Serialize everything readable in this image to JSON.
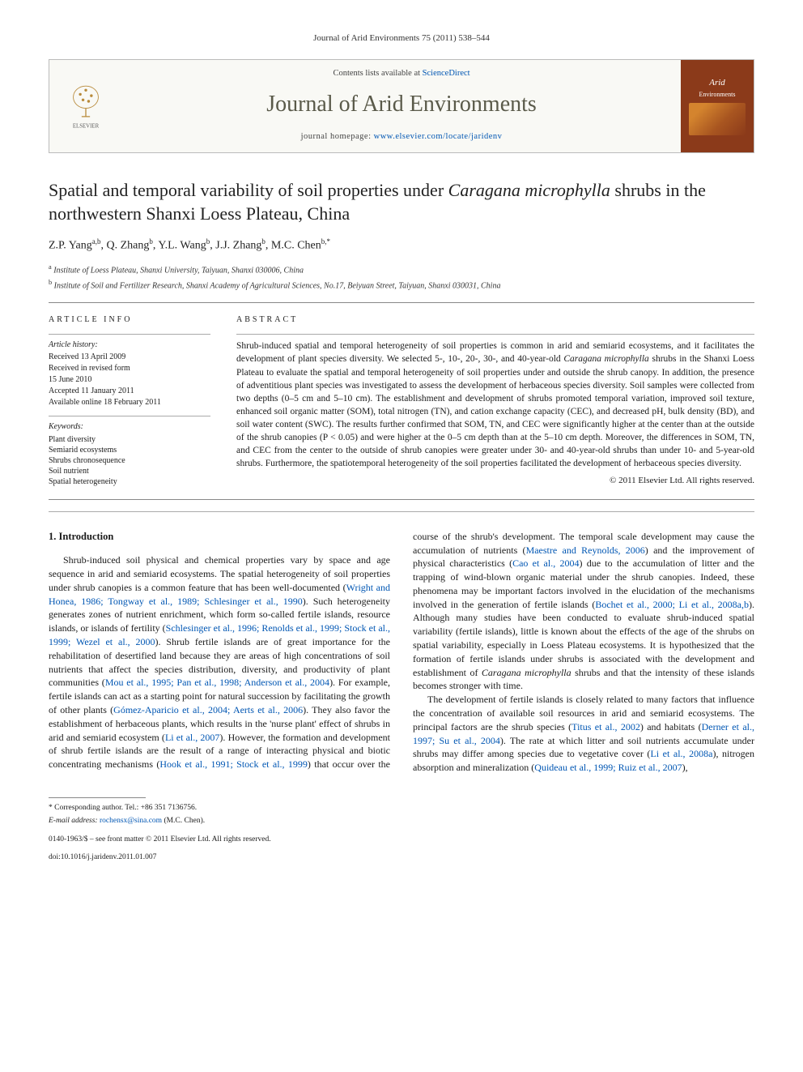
{
  "citation": "Journal of Arid Environments 75 (2011) 538–544",
  "masthead": {
    "contents_prefix": "Contents lists available at ",
    "contents_link": "ScienceDirect",
    "journal_name": "Journal of Arid Environments",
    "homepage_prefix": "journal homepage: ",
    "homepage_url": "www.elsevier.com/locate/jaridenv",
    "publisher": "ELSEVIER",
    "cover_title": "Arid",
    "cover_sub": "Environments"
  },
  "article": {
    "title_pre": "Spatial and temporal variability of soil properties under ",
    "title_species": "Caragana microphylla",
    "title_post": " shrubs in the northwestern Shanxi Loess Plateau, China",
    "authors_html": "Z.P. Yang",
    "authors": [
      {
        "name": "Z.P. Yang",
        "sup": "a,b"
      },
      {
        "name": "Q. Zhang",
        "sup": "b"
      },
      {
        "name": "Y.L. Wang",
        "sup": "b"
      },
      {
        "name": "J.J. Zhang",
        "sup": "b"
      },
      {
        "name": "M.C. Chen",
        "sup": "b,*"
      }
    ],
    "affiliations": [
      {
        "sup": "a",
        "text": "Institute of Loess Plateau, Shanxi University, Taiyuan, Shanxi 030006, China"
      },
      {
        "sup": "b",
        "text": "Institute of Soil and Fertilizer Research, Shanxi Academy of Agricultural Sciences, No.17, Beiyuan Street, Taiyuan, Shanxi 030031, China"
      }
    ]
  },
  "info": {
    "heading": "ARTICLE INFO",
    "history_label": "Article history:",
    "history": [
      "Received 13 April 2009",
      "Received in revised form",
      "15 June 2010",
      "Accepted 11 January 2011",
      "Available online 18 February 2011"
    ],
    "keywords_label": "Keywords:",
    "keywords": [
      "Plant diversity",
      "Semiarid ecosystems",
      "Shrubs chronosequence",
      "Soil nutrient",
      "Spatial heterogeneity"
    ]
  },
  "abstract": {
    "heading": "ABSTRACT",
    "text_pre": "Shrub-induced spatial and temporal heterogeneity of soil properties is common in arid and semiarid ecosystems, and it facilitates the development of plant species diversity. We selected 5-, 10-, 20-, 30-, and 40-year-old ",
    "species": "Caragana microphylla",
    "text_post": " shrubs in the Shanxi Loess Plateau to evaluate the spatial and temporal heterogeneity of soil properties under and outside the shrub canopy. In addition, the presence of adventitious plant species was investigated to assess the development of herbaceous species diversity. Soil samples were collected from two depths (0–5 cm and 5–10 cm). The establishment and development of shrubs promoted temporal variation, improved soil texture, enhanced soil organic matter (SOM), total nitrogen (TN), and cation exchange capacity (CEC), and decreased pH, bulk density (BD), and soil water content (SWC). The results further confirmed that SOM, TN, and CEC were significantly higher at the center than at the outside of the shrub canopies (P < 0.05) and were higher at the 0–5 cm depth than at the 5–10 cm depth. Moreover, the differences in SOM, TN, and CEC from the center to the outside of shrub canopies were greater under 30- and 40-year-old shrubs than under 10- and 5-year-old shrubs. Furthermore, the spatiotemporal heterogeneity of the soil properties facilitated the development of herbaceous species diversity.",
    "copyright": "© 2011 Elsevier Ltd. All rights reserved."
  },
  "body": {
    "heading": "1. Introduction",
    "col1_p1_a": "Shrub-induced soil physical and chemical properties vary by space and age sequence in arid and semiarid ecosystems. The spatial heterogeneity of soil properties under shrub canopies is a common feature that has been well-documented (",
    "col1_p1_cite1": "Wright and Honea, 1986; Tongway et al., 1989; Schlesinger et al., 1990",
    "col1_p1_b": "). Such heterogeneity generates zones of nutrient enrichment, which form so-called fertile islands, resource islands, or islands of fertility (",
    "col1_p1_cite2": "Schlesinger et al., 1996; Renolds et al., 1999; Stock et al., 1999; Wezel et al., 2000",
    "col1_p1_c": "). Shrub fertile islands are of great importance for the rehabilitation of desertified land because they are areas of high concentrations of soil nutrients that affect the species distribution, diversity, and productivity of plant communities (",
    "col1_p1_cite3": "Mou et al., 1995; Pan et al., 1998; Anderson et al., 2004",
    "col1_p1_d": "). For example, fertile islands can act as a starting point for natural succession by facilitating the growth of other plants (",
    "col1_p1_cite4": "Gómez-Aparicio et al., 2004; Aerts et al., 2006",
    "col1_p1_e": "). They also favor the establishment of herbaceous plants, which results in the 'nurse plant' effect of shrubs in arid and semiarid ecosystem (",
    "col1_p1_cite5": "Li et al., 2007",
    "col1_p1_f": "). However, the formation and development of shrub ",
    "col2_p1_a": "fertile islands are the result of a range of interacting physical and biotic concentrating mechanisms (",
    "col2_p1_cite1": "Hook et al., 1991; Stock et al., 1999",
    "col2_p1_b": ") that occur over the course of the shrub's development. The temporal scale development may cause the accumulation of nutrients (",
    "col2_p1_cite2": "Maestre and Reynolds, 2006",
    "col2_p1_c": ") and the improvement of physical characteristics (",
    "col2_p1_cite3": "Cao et al., 2004",
    "col2_p1_d": ") due to the accumulation of litter and the trapping of wind-blown organic material under the shrub canopies. Indeed, these phenomena may be important factors involved in the elucidation of the mechanisms involved in the generation of fertile islands (",
    "col2_p1_cite4": "Bochet et al., 2000; Li et al., 2008a,b",
    "col2_p1_e": "). Although many studies have been conducted to evaluate shrub-induced spatial variability (fertile islands), little is known about the effects of the age of the shrubs on spatial variability, especially in Loess Plateau ecosystems. It is hypothesized that the formation of fertile islands under shrubs is associated with the development and establishment of ",
    "col2_p1_species": "Caragana microphylla",
    "col2_p1_f": " shrubs and that the intensity of these islands becomes stronger with time.",
    "col2_p2_a": "The development of fertile islands is closely related to many factors that influence the concentration of available soil resources in arid and semiarid ecosystems. The principal factors are the shrub species (",
    "col2_p2_cite1": "Titus et al., 2002",
    "col2_p2_b": ") and habitats (",
    "col2_p2_cite2": "Derner et al., 1997; Su et al., 2004",
    "col2_p2_c": "). The rate at which litter and soil nutrients accumulate under shrubs may differ among species due to vegetative cover (",
    "col2_p2_cite3": "Li et al., 2008a",
    "col2_p2_d": "), nitrogen absorption and mineralization (",
    "col2_p2_cite4": "Quideau et al., 1999; Ruiz et al., 2007",
    "col2_p2_e": "),"
  },
  "footer": {
    "corr_label": "* Corresponding author. Tel.: ",
    "corr_tel": "+86 351 7136756.",
    "email_label": "E-mail address: ",
    "email": "rochensx@sina.com",
    "email_name": " (M.C. Chen).",
    "issn": "0140-1963/$ – see front matter © 2011 Elsevier Ltd. All rights reserved.",
    "doi": "doi:10.1016/j.jaridenv.2011.01.007"
  },
  "colors": {
    "link": "#0056b3",
    "text": "#1a1a1a",
    "border": "#bbbbbb",
    "cover_bg": "#8b3a1a",
    "journal_title": "#5a5a4a"
  }
}
